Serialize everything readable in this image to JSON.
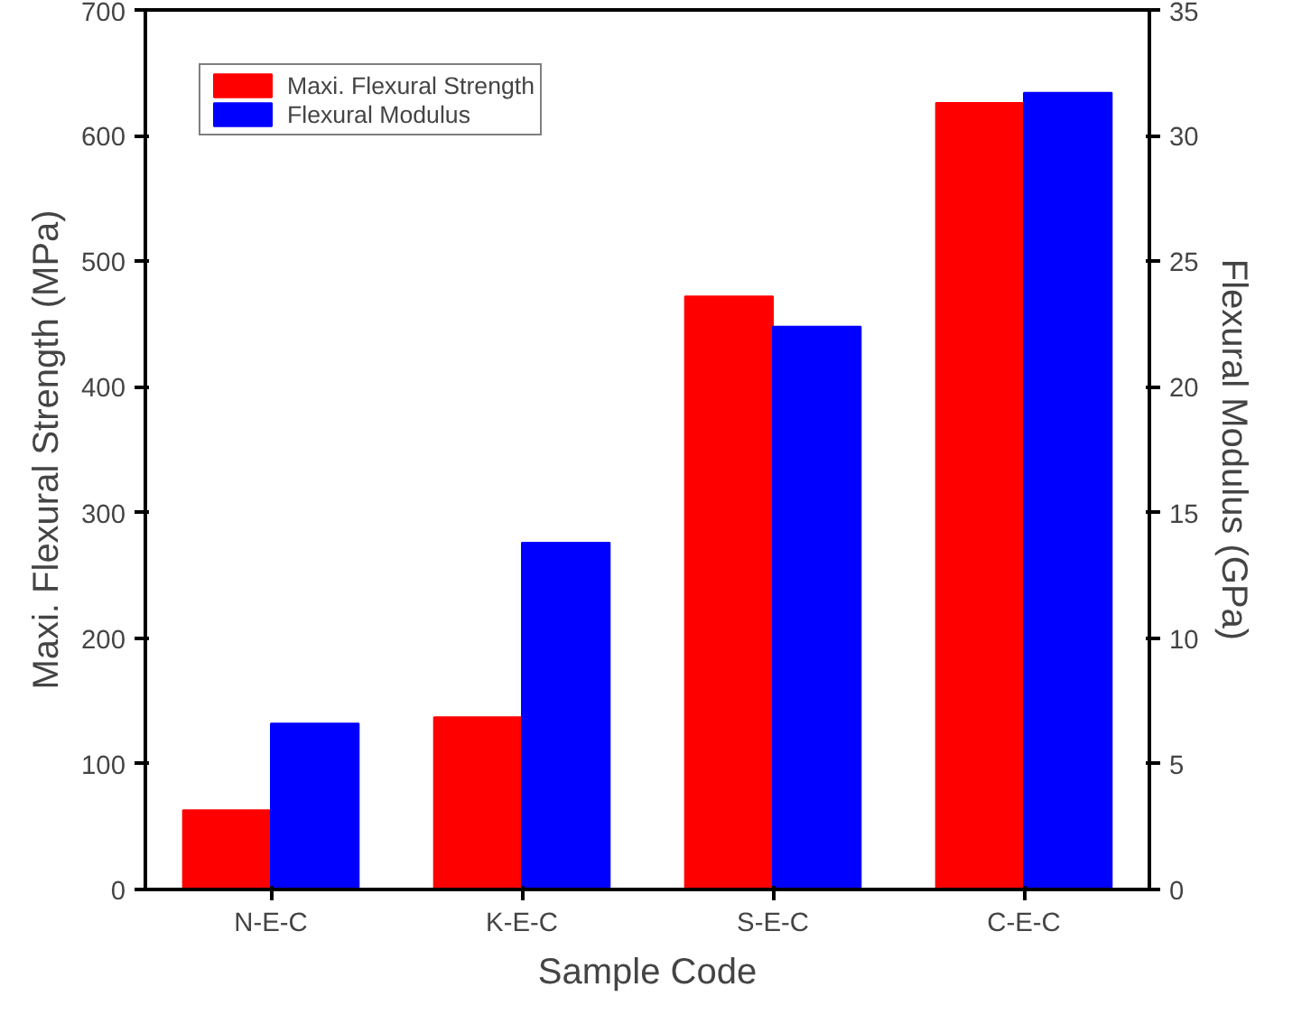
{
  "chart_data": {
    "type": "bar",
    "xlabel": "Sample Code",
    "ylabel": "Maxi. Flexural Strength (MPa)",
    "y2label": "Flexural Modulus (GPa)",
    "categories": [
      "N-E-C",
      "K-E-C",
      "S-E-C",
      "C-E-C"
    ],
    "series": [
      {
        "name": "Maxi. Flexural Strength",
        "color": "#ff0000",
        "values": [
          63,
          137,
          472,
          626
        ]
      },
      {
        "name": "Flexural Modulus",
        "color": "#0000ff",
        "values": [
          6.6,
          13.8,
          22.4,
          31.7
        ],
        "axis": "y2"
      }
    ],
    "ylim": [
      0,
      700
    ],
    "yticks": [
      0,
      100,
      200,
      300,
      400,
      500,
      600,
      700
    ],
    "y2lim": [
      0,
      35
    ],
    "y2ticks": [
      0,
      5,
      10,
      15,
      20,
      25,
      30,
      35
    ],
    "grid": false,
    "legend": "top left"
  }
}
